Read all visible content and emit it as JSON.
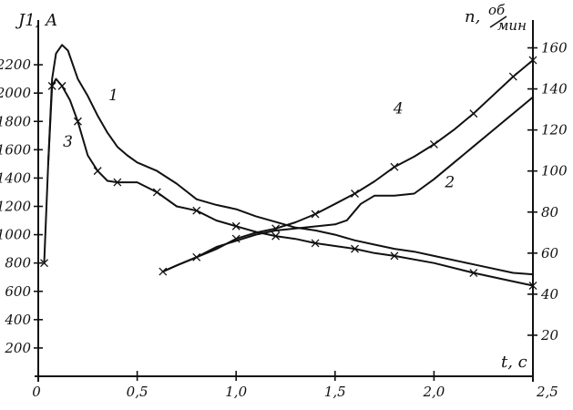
{
  "chart_data": {
    "type": "line",
    "xlabel": "t, c",
    "ylabel_left": "J1, A",
    "ylabel_right_base": "n,",
    "ylabel_right_unit_num": "об",
    "ylabel_right_unit_den": "мин",
    "x_ticks": [
      "0",
      "0,5",
      "1,0",
      "1,5",
      "2,0",
      "2,5"
    ],
    "x_tick_values": [
      0,
      0.5,
      1.0,
      1.5,
      2.0,
      2.5
    ],
    "y_left_ticks": [
      "200",
      "400",
      "600",
      "800",
      "1000",
      "1200",
      "1400",
      "1600",
      "1800",
      "2000",
      "2200"
    ],
    "y_left_tick_values": [
      200,
      400,
      600,
      800,
      1000,
      1200,
      1400,
      1600,
      1800,
      2000,
      2200
    ],
    "y_right_ticks": [
      "20",
      "40",
      "60",
      "80",
      "100",
      "120",
      "140",
      "160"
    ],
    "y_right_tick_values": [
      20,
      40,
      60,
      80,
      100,
      120,
      140,
      160
    ],
    "xlim": [
      0,
      2.5
    ],
    "ylim_left": [
      0,
      2400
    ],
    "ylim_right": [
      0,
      170
    ],
    "grid": false,
    "series": [
      {
        "name": "1",
        "axis": "left",
        "markers": false,
        "points": [
          [
            0.05,
            1500
          ],
          [
            0.07,
            2100
          ],
          [
            0.09,
            2280
          ],
          [
            0.12,
            2340
          ],
          [
            0.15,
            2300
          ],
          [
            0.2,
            2100
          ],
          [
            0.25,
            1980
          ],
          [
            0.3,
            1840
          ],
          [
            0.35,
            1720
          ],
          [
            0.4,
            1620
          ],
          [
            0.45,
            1560
          ],
          [
            0.5,
            1510
          ],
          [
            0.6,
            1450
          ],
          [
            0.7,
            1360
          ],
          [
            0.8,
            1250
          ],
          [
            0.9,
            1210
          ],
          [
            1.0,
            1180
          ],
          [
            1.1,
            1130
          ],
          [
            1.2,
            1090
          ],
          [
            1.3,
            1050
          ],
          [
            1.4,
            1030
          ],
          [
            1.5,
            1000
          ],
          [
            1.6,
            960
          ],
          [
            1.7,
            930
          ],
          [
            1.8,
            900
          ],
          [
            1.9,
            880
          ],
          [
            2.0,
            850
          ],
          [
            2.2,
            790
          ],
          [
            2.4,
            730
          ],
          [
            2.5,
            720
          ]
        ]
      },
      {
        "name": "3",
        "axis": "left",
        "markers": true,
        "points": [
          [
            0.03,
            800
          ],
          [
            0.05,
            1500
          ],
          [
            0.07,
            2050
          ],
          [
            0.09,
            2100
          ],
          [
            0.12,
            2050
          ],
          [
            0.16,
            1950
          ],
          [
            0.2,
            1800
          ],
          [
            0.25,
            1560
          ],
          [
            0.3,
            1450
          ],
          [
            0.35,
            1380
          ],
          [
            0.4,
            1370
          ],
          [
            0.5,
            1370
          ],
          [
            0.6,
            1300
          ],
          [
            0.7,
            1200
          ],
          [
            0.8,
            1170
          ],
          [
            0.9,
            1100
          ],
          [
            1.0,
            1060
          ],
          [
            1.1,
            1020
          ],
          [
            1.2,
            990
          ],
          [
            1.3,
            970
          ],
          [
            1.4,
            940
          ],
          [
            1.5,
            920
          ],
          [
            1.6,
            900
          ],
          [
            1.7,
            870
          ],
          [
            1.8,
            850
          ],
          [
            2.0,
            800
          ],
          [
            2.2,
            730
          ],
          [
            2.4,
            670
          ],
          [
            2.5,
            640
          ]
        ]
      },
      {
        "name": "4",
        "axis": "right",
        "markers": true,
        "points": [
          [
            0.63,
            51
          ],
          [
            0.7,
            54
          ],
          [
            0.8,
            58
          ],
          [
            0.9,
            62
          ],
          [
            1.0,
            67
          ],
          [
            1.1,
            70
          ],
          [
            1.2,
            72
          ],
          [
            1.3,
            75
          ],
          [
            1.4,
            79
          ],
          [
            1.5,
            84
          ],
          [
            1.6,
            89
          ],
          [
            1.7,
            95
          ],
          [
            1.8,
            102
          ],
          [
            1.9,
            107
          ],
          [
            2.0,
            113
          ],
          [
            2.1,
            120
          ],
          [
            2.2,
            128
          ],
          [
            2.3,
            137
          ],
          [
            2.4,
            146
          ],
          [
            2.5,
            154
          ]
        ]
      },
      {
        "name": "2",
        "axis": "right",
        "markers": false,
        "points": [
          [
            0.63,
            51
          ],
          [
            0.7,
            54
          ],
          [
            0.8,
            58
          ],
          [
            0.9,
            63
          ],
          [
            1.0,
            66
          ],
          [
            1.1,
            69
          ],
          [
            1.2,
            71
          ],
          [
            1.3,
            72
          ],
          [
            1.4,
            73
          ],
          [
            1.5,
            74
          ],
          [
            1.56,
            76
          ],
          [
            1.63,
            84
          ],
          [
            1.7,
            88
          ],
          [
            1.8,
            88
          ],
          [
            1.9,
            89
          ],
          [
            2.0,
            96
          ],
          [
            2.1,
            104
          ],
          [
            2.2,
            112
          ],
          [
            2.3,
            120
          ],
          [
            2.4,
            128
          ],
          [
            2.5,
            136
          ]
        ]
      }
    ],
    "curve_labels": [
      {
        "text": "1",
        "x": 0.38,
        "y": 1950,
        "axis": "left"
      },
      {
        "text": "3",
        "x": 0.15,
        "y": 1620,
        "axis": "left"
      },
      {
        "text": "4",
        "x": 1.82,
        "y": 128,
        "axis": "right"
      },
      {
        "text": "2",
        "x": 2.08,
        "y": 92,
        "axis": "right"
      }
    ]
  }
}
